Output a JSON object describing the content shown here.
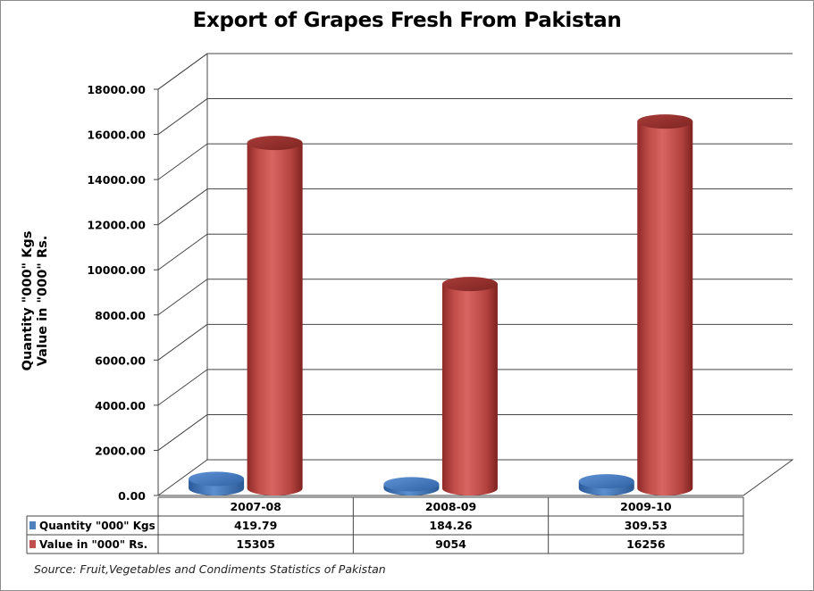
{
  "chart_data": {
    "type": "bar",
    "title": "Export of Grapes Fresh From Pakistan",
    "ylabel_lines": [
      "Quantity \"000\" Kgs",
      "Value in \"000\" Rs."
    ],
    "ylim": [
      0,
      18000
    ],
    "yticks": [
      "0.00",
      "2000.00",
      "4000.00",
      "6000.00",
      "8000.00",
      "10000.00",
      "12000.00",
      "14000.00",
      "16000.00",
      "18000.00"
    ],
    "categories": [
      "2007-08",
      "2008-09",
      "2009-10"
    ],
    "series": [
      {
        "name": "Quantity \"000\" Kgs",
        "values": [
          419.79,
          184.26,
          309.53
        ],
        "labels": [
          "419.79",
          "184.26",
          "309.53"
        ],
        "color": "#4f81bd"
      },
      {
        "name": "Value in \"000\" Rs.",
        "values": [
          15305,
          9054,
          16256
        ],
        "labels": [
          "15305",
          "9054",
          "16256"
        ],
        "color": "#c0504d"
      }
    ],
    "grid": true,
    "legend": "data-table-below",
    "source": "Source: Fruit,Vegetables and Condiments Statistics of Pakistan"
  }
}
